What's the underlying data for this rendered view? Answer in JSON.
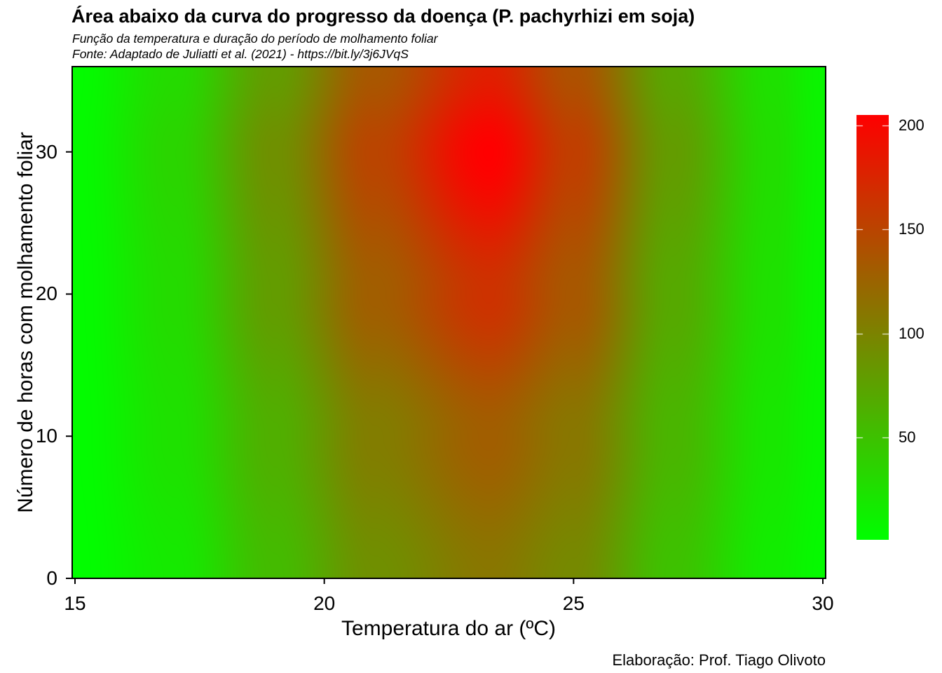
{
  "title": "Área abaixo da curva do progresso da doença (P. pachyrhizi em soja)",
  "subtitle_line1": "Função da temperatura e duração do período de molhamento foliar",
  "subtitle_line2": "Fonte: Adaptado de Juliatti et al. (2021) - https://bit.ly/3j6JVqS",
  "caption": "Elaboração: Prof. Tiago Olivoto",
  "chart_data": {
    "type": "heatmap",
    "title": "Área abaixo da curva do progresso da doença (P. pachyrhizi em soja)",
    "xlabel": "Temperatura do ar (ºC)",
    "ylabel": "Número de horas com molhamento foliar",
    "xlim": [
      15,
      30
    ],
    "ylim": [
      0,
      36
    ],
    "x_ticks": [
      15,
      20,
      25,
      30
    ],
    "y_ticks": [
      0,
      10,
      20,
      30
    ],
    "legend_ticks": [
      50,
      100,
      150,
      200
    ],
    "legend_range": [
      1,
      205
    ],
    "legend_placement": "right",
    "grid": false,
    "colorscale": [
      "#00ff00",
      "#ff0000"
    ],
    "z_values": {
      "x": [
        15,
        17,
        19,
        21,
        23.3,
        25,
        27,
        29,
        30
      ],
      "y": [
        0,
        10,
        20,
        30,
        36
      ],
      "z": [
        [
          2,
          18,
          55,
          90,
          110,
          95,
          50,
          15,
          5
        ],
        [
          3,
          25,
          65,
          105,
          130,
          110,
          60,
          20,
          8
        ],
        [
          4,
          30,
          80,
          130,
          165,
          135,
          70,
          25,
          9
        ],
        [
          5,
          35,
          90,
          150,
          205,
          155,
          80,
          28,
          10
        ],
        [
          4,
          30,
          80,
          135,
          180,
          140,
          72,
          25,
          9
        ]
      ]
    }
  }
}
